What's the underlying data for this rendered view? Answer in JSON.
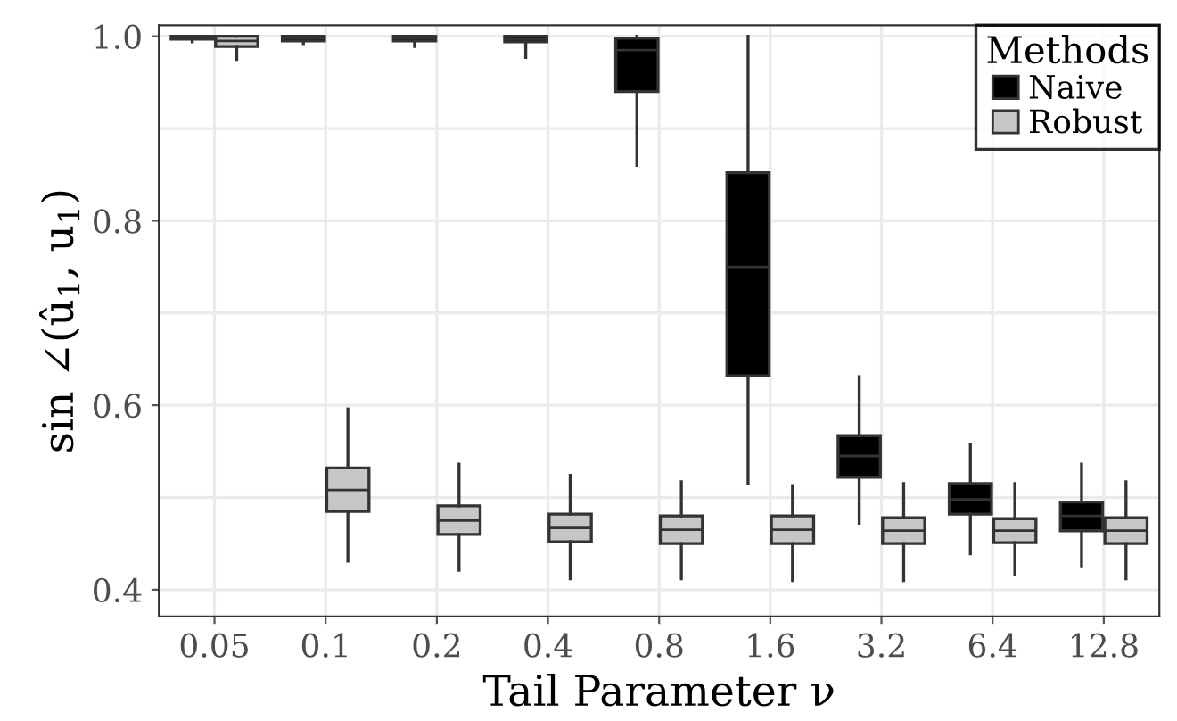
{
  "chart_data": {
    "type": "box",
    "xlabel": "Tail Parameter ν",
    "ylabel": "sin ∠(û$_{1}$, u$_{1}$)",
    "legend_title": "Methods",
    "categories": [
      "0.05",
      "0.1",
      "0.2",
      "0.4",
      "0.8",
      "1.6",
      "3.2",
      "6.4",
      "12.8"
    ],
    "ylim": [
      0.371,
      1.012
    ],
    "yticks": [
      {
        "value": 0.4,
        "label": "0.4"
      },
      {
        "value": 0.5,
        "label": null
      },
      {
        "value": 0.6,
        "label": "0.6"
      },
      {
        "value": 0.7,
        "label": null
      },
      {
        "value": 0.8,
        "label": "0.8"
      },
      {
        "value": 0.9,
        "label": null
      },
      {
        "value": 1.0,
        "label": "1.0"
      }
    ],
    "grid": true,
    "legend": "top right",
    "series": [
      {
        "name": "Naive",
        "color": "#000000",
        "boxes": [
          {
            "low": 0.994,
            "q1": 0.997,
            "median": 0.999,
            "q3": 1.0,
            "high": 1.0
          },
          {
            "low": 0.992,
            "q1": 0.995,
            "median": 0.998,
            "q3": 1.0,
            "high": 1.0
          },
          {
            "low": 0.989,
            "q1": 0.995,
            "median": 0.998,
            "q3": 1.0,
            "high": 1.0
          },
          {
            "low": 0.977,
            "q1": 0.994,
            "median": 0.997,
            "q3": 1.0,
            "high": 1.0
          },
          {
            "low": 0.86,
            "q1": 0.94,
            "median": 0.985,
            "q3": 0.998,
            "high": 1.0
          },
          {
            "low": 0.515,
            "q1": 0.632,
            "median": 0.75,
            "q3": 0.852,
            "high": 1.0
          },
          {
            "low": 0.472,
            "q1": 0.522,
            "median": 0.545,
            "q3": 0.567,
            "high": 0.631
          },
          {
            "low": 0.439,
            "q1": 0.482,
            "median": 0.498,
            "q3": 0.515,
            "high": 0.557
          },
          {
            "low": 0.426,
            "q1": 0.464,
            "median": 0.48,
            "q3": 0.495,
            "high": 0.536
          }
        ]
      },
      {
        "name": "Robust",
        "color": "#c6c6c6",
        "boxes": [
          {
            "low": 0.975,
            "q1": 0.989,
            "median": 0.995,
            "q3": 1.0,
            "high": 1.0
          },
          {
            "low": 0.431,
            "q1": 0.485,
            "median": 0.508,
            "q3": 0.532,
            "high": 0.596
          },
          {
            "low": 0.421,
            "q1": 0.46,
            "median": 0.475,
            "q3": 0.491,
            "high": 0.536
          },
          {
            "low": 0.412,
            "q1": 0.452,
            "median": 0.467,
            "q3": 0.482,
            "high": 0.524
          },
          {
            "low": 0.412,
            "q1": 0.45,
            "median": 0.465,
            "q3": 0.48,
            "high": 0.517
          },
          {
            "low": 0.41,
            "q1": 0.45,
            "median": 0.465,
            "q3": 0.48,
            "high": 0.513
          },
          {
            "low": 0.41,
            "q1": 0.45,
            "median": 0.464,
            "q3": 0.478,
            "high": 0.515
          },
          {
            "low": 0.416,
            "q1": 0.451,
            "median": 0.464,
            "q3": 0.477,
            "high": 0.515
          },
          {
            "low": 0.412,
            "q1": 0.45,
            "median": 0.464,
            "q3": 0.478,
            "high": 0.517
          }
        ]
      }
    ]
  }
}
